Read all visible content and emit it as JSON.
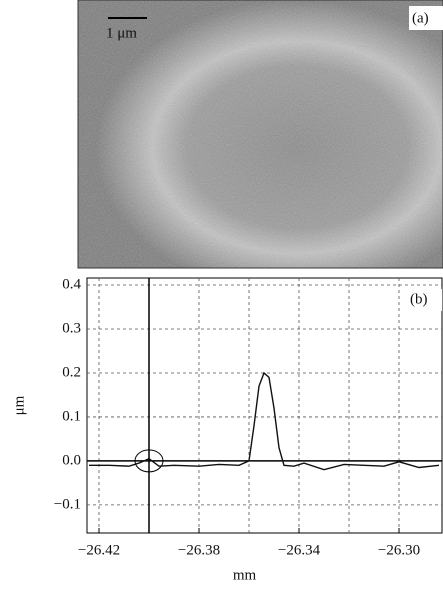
{
  "panel_a": {
    "label": "(a)",
    "scale_bar": "1 μm"
  },
  "chart_data": {
    "type": "line",
    "label": "(b)",
    "x_label": "mm",
    "y_label": "μm",
    "x": [
      -26.424,
      -26.416,
      -26.408,
      -26.404,
      -26.4,
      -26.396,
      -26.39,
      -26.38,
      -26.372,
      -26.364,
      -26.36,
      -26.358,
      -26.356,
      -26.354,
      -26.352,
      -26.35,
      -26.348,
      -26.346,
      -26.342,
      -26.338,
      -26.33,
      -26.322,
      -26.314,
      -26.306,
      -26.3,
      -26.292,
      -26.284
    ],
    "series": [
      {
        "color": "#111111",
        "values": [
          -0.01,
          -0.01,
          -0.012,
          -0.005,
          0.005,
          -0.012,
          -0.01,
          -0.012,
          -0.008,
          -0.01,
          0.0,
          0.08,
          0.17,
          0.2,
          0.19,
          0.12,
          0.03,
          -0.01,
          -0.012,
          -0.005,
          -0.02,
          -0.008,
          -0.01,
          -0.012,
          -0.002,
          -0.015,
          -0.01
        ]
      }
    ],
    "xlim": [
      -26.4248,
      -26.2828
    ],
    "ylim": [
      -0.164,
      0.416
    ],
    "xticks": [
      {
        "value": -26.42,
        "label": "−26.42"
      },
      {
        "value": -26.38,
        "label": "−26.38"
      },
      {
        "value": -26.34,
        "label": "−26.34"
      },
      {
        "value": -26.3,
        "label": "−26.30"
      }
    ],
    "xminor": [
      -26.4,
      -26.36,
      -26.32
    ],
    "yticks": [
      {
        "value": -0.1,
        "label": "−0.1"
      },
      {
        "value": 0,
        "label": "0.0"
      },
      0.1,
      0.2,
      0.3,
      0.4
    ],
    "cursor": [
      -26.4,
      0
    ],
    "grid": true
  }
}
